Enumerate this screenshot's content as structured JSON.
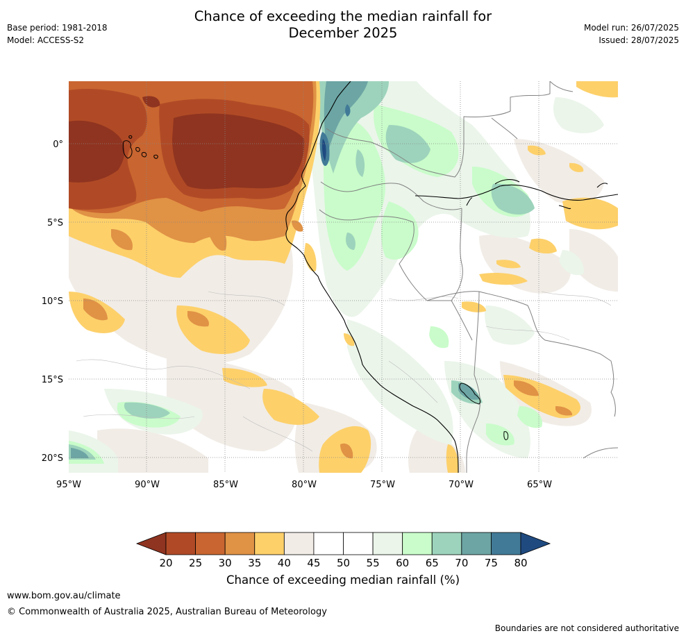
{
  "header": {
    "title_line1": "Chance of exceeding the median rainfall for",
    "title_line2": "December 2025",
    "base_period": "Base period: 1981-2018",
    "model": "Model: ACCESS-S2",
    "model_run": "Model run: 26/07/2025",
    "issued": "Issued: 28/07/2025"
  },
  "map": {
    "lon_ticks": [
      "95°W",
      "90°W",
      "85°W",
      "80°W",
      "75°W",
      "70°W",
      "65°W"
    ],
    "lat_ticks": [
      "0°",
      "5°S",
      "10°S",
      "15°S",
      "20°S"
    ],
    "lon_range": [
      -95,
      -61
    ],
    "lat_range": [
      -21,
      4
    ]
  },
  "colorbar": {
    "ticks": [
      "20",
      "25",
      "30",
      "35",
      "40",
      "45",
      "50",
      "55",
      "60",
      "65",
      "70",
      "75",
      "80"
    ],
    "colors": [
      "#8f3420",
      "#b04a26",
      "#c96530",
      "#e09245",
      "#fdd06a",
      "#f1ece6",
      "#ffffff",
      "#ffffff",
      "#ebf5ea",
      "#c9fcca",
      "#9dd3bc",
      "#6ca5a4",
      "#417a97",
      "#1f4a80"
    ],
    "label": "Chance of exceeding median rainfall (%)"
  },
  "footer": {
    "website": "www.bom.gov.au/climate",
    "copyright": "© Commonwealth of Australia 2025, Australian Bureau of Meteorology",
    "disclaimer": "Boundaries are not considered authoritative"
  }
}
